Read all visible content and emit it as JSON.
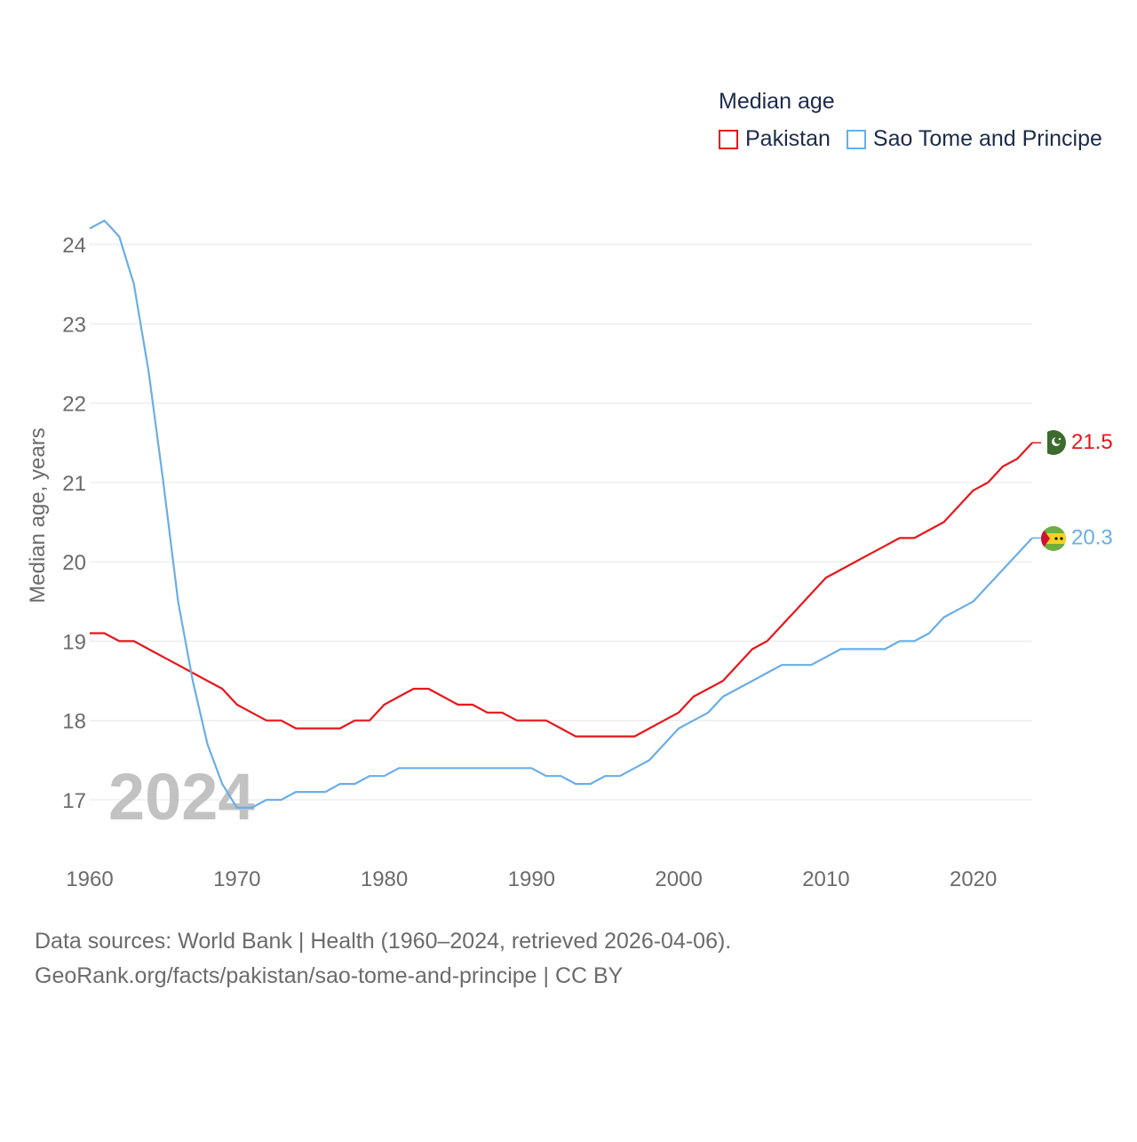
{
  "legend": {
    "title": "Median age",
    "items": [
      "Pakistan",
      "Sao Tome and Principe"
    ]
  },
  "source": {
    "line1": "Data sources: World Bank | Health (1960–2024, retrieved 2026-04-06).",
    "line2": "GeoRank.org/facts/pakistan/sao-tome-and-principe | CC BY"
  },
  "colors": {
    "pakistan": "#e8151b",
    "sao_tome": "#6aaee6",
    "grid": "#e6e6e6",
    "tick": "#6b6b6b",
    "year_watermark": "#c2c2c2"
  },
  "chart_data": {
    "type": "line",
    "title": "Median age",
    "xlabel": "",
    "ylabel": "Median age, years",
    "year_label": "2024",
    "xlim": [
      1960,
      2024
    ],
    "ylim": [
      16.5,
      24.6
    ],
    "x_ticks": [
      1960,
      1970,
      1980,
      1990,
      2000,
      2010,
      2020
    ],
    "y_ticks": [
      17,
      18,
      19,
      20,
      21,
      22,
      23,
      24
    ],
    "grid": true,
    "legend_position": "top-right",
    "x": [
      1960,
      1961,
      1962,
      1963,
      1964,
      1965,
      1966,
      1967,
      1968,
      1969,
      1970,
      1971,
      1972,
      1973,
      1974,
      1975,
      1976,
      1977,
      1978,
      1979,
      1980,
      1981,
      1982,
      1983,
      1984,
      1985,
      1986,
      1987,
      1988,
      1989,
      1990,
      1991,
      1992,
      1993,
      1994,
      1995,
      1996,
      1997,
      1998,
      1999,
      2000,
      2001,
      2002,
      2003,
      2004,
      2005,
      2006,
      2007,
      2008,
      2009,
      2010,
      2011,
      2012,
      2013,
      2014,
      2015,
      2016,
      2017,
      2018,
      2019,
      2020,
      2021,
      2022,
      2023,
      2024
    ],
    "series": [
      {
        "name": "Pakistan",
        "color": "#e8151b",
        "end_label": "21.5",
        "values": [
          19.1,
          19.1,
          19.0,
          19.0,
          18.9,
          18.8,
          18.7,
          18.6,
          18.5,
          18.4,
          18.2,
          18.1,
          18.0,
          18.0,
          17.9,
          17.9,
          17.9,
          17.9,
          18.0,
          18.0,
          18.2,
          18.3,
          18.4,
          18.4,
          18.3,
          18.2,
          18.2,
          18.1,
          18.1,
          18.0,
          18.0,
          18.0,
          17.9,
          17.8,
          17.8,
          17.8,
          17.8,
          17.8,
          17.9,
          18.0,
          18.1,
          18.3,
          18.4,
          18.5,
          18.7,
          18.9,
          19.0,
          19.2,
          19.4,
          19.6,
          19.8,
          19.9,
          20.0,
          20.1,
          20.2,
          20.3,
          20.3,
          20.4,
          20.5,
          20.7,
          20.9,
          21.0,
          21.2,
          21.3,
          21.5
        ]
      },
      {
        "name": "Sao Tome and Principe",
        "color": "#6aaee6",
        "end_label": "20.3",
        "values": [
          24.2,
          24.3,
          24.1,
          23.5,
          22.4,
          21.0,
          19.5,
          18.5,
          17.7,
          17.2,
          16.9,
          16.9,
          17.0,
          17.0,
          17.1,
          17.1,
          17.1,
          17.2,
          17.2,
          17.3,
          17.3,
          17.4,
          17.4,
          17.4,
          17.4,
          17.4,
          17.4,
          17.4,
          17.4,
          17.4,
          17.4,
          17.3,
          17.3,
          17.2,
          17.2,
          17.3,
          17.3,
          17.4,
          17.5,
          17.7,
          17.9,
          18.0,
          18.1,
          18.3,
          18.4,
          18.5,
          18.6,
          18.7,
          18.7,
          18.7,
          18.8,
          18.9,
          18.9,
          18.9,
          18.9,
          19.0,
          19.0,
          19.1,
          19.3,
          19.4,
          19.5,
          19.7,
          19.9,
          20.1,
          20.3
        ]
      }
    ]
  }
}
